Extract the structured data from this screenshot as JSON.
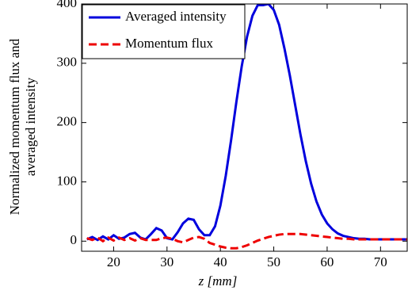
{
  "chart_data": {
    "type": "line",
    "xlabel": "z [mm]",
    "ylabel": [
      "Normalized momentum flux and",
      "averaged intensity"
    ],
    "xlim": [
      14,
      75
    ],
    "ylim": [
      -17,
      400
    ],
    "xticks": [
      20,
      30,
      40,
      50,
      60,
      70
    ],
    "yticks": [
      0,
      100,
      200,
      300,
      400
    ],
    "legend": "upper left",
    "x": [
      15,
      16,
      17,
      18,
      19,
      20,
      21,
      22,
      23,
      24,
      25,
      26,
      27,
      28,
      29,
      30,
      31,
      32,
      33,
      34,
      35,
      36,
      37,
      38,
      39,
      40,
      41,
      42,
      43,
      44,
      45,
      46,
      47,
      48,
      49,
      50,
      51,
      52,
      53,
      54,
      55,
      56,
      57,
      58,
      59,
      60,
      61,
      62,
      63,
      64,
      65,
      66,
      67,
      68,
      69,
      70,
      71,
      72,
      73,
      74,
      75
    ],
    "series": [
      {
        "name": "Averaged intensity",
        "color": "#0000dd",
        "dash": "solid",
        "values": [
          3,
          7,
          2,
          8,
          3,
          10,
          4,
          6,
          12,
          14,
          6,
          3,
          12,
          22,
          18,
          5,
          3,
          15,
          30,
          38,
          36,
          20,
          10,
          10,
          25,
          60,
          110,
          170,
          235,
          295,
          345,
          380,
          398,
          398,
          400,
          390,
          365,
          325,
          280,
          230,
          180,
          135,
          97,
          67,
          45,
          30,
          20,
          13,
          9,
          7,
          5,
          4,
          4,
          3,
          3,
          3,
          3,
          3,
          3,
          3,
          3
        ]
      },
      {
        "name": "Momentum flux",
        "color": "#ee0000",
        "dash": "dashed",
        "values": [
          5,
          2,
          6,
          0,
          6,
          1,
          6,
          2,
          5,
          1,
          5,
          2,
          2,
          2,
          5,
          6,
          4,
          0,
          -2,
          2,
          6,
          7,
          4,
          -3,
          -6,
          -9,
          -11,
          -12,
          -12,
          -10,
          -7,
          -3,
          1,
          4,
          7,
          9,
          11,
          12,
          12,
          12,
          12,
          11,
          10,
          9,
          8,
          7,
          6,
          5,
          4,
          4,
          3,
          3,
          3,
          3,
          3,
          3,
          3,
          3,
          3,
          3,
          3
        ]
      }
    ]
  }
}
